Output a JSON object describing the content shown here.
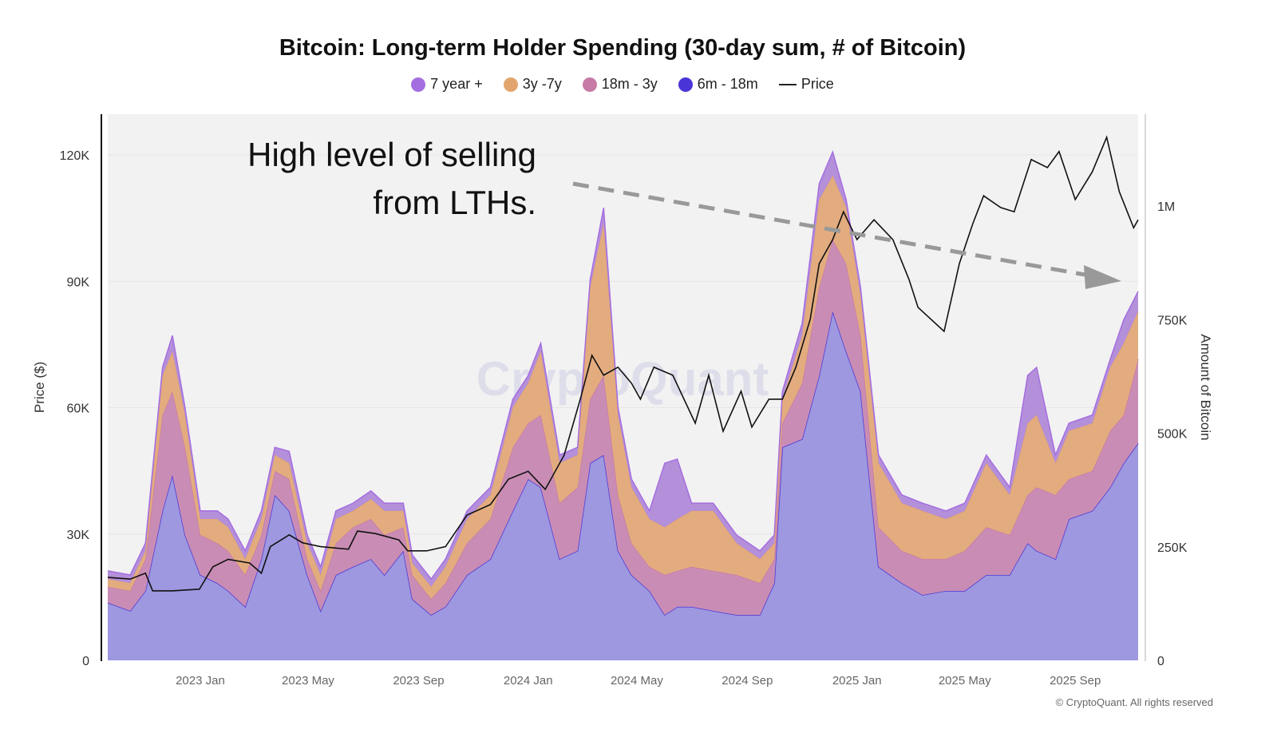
{
  "chart_data": {
    "type": "area",
    "stacked": true,
    "title": "Bitcoin: Long-term Holder Spending (30-day sum, # of Bitcoin)",
    "ylabel_left": "Price ($)",
    "ylabel_right": "Amount of Bitcoin",
    "left_ticks": [
      "0",
      "30K",
      "60K",
      "90K",
      "120K"
    ],
    "right_ticks": [
      "0",
      "250K",
      "500K",
      "750K",
      "1M"
    ],
    "x_ticks": [
      {
        "label": "2023 Jan",
        "date": "2023-01-01"
      },
      {
        "label": "2023 May",
        "date": "2023-05-01"
      },
      {
        "label": "2023 Sep",
        "date": "2023-09-01"
      },
      {
        "label": "2024 Jan",
        "date": "2024-01-01"
      },
      {
        "label": "2024 May",
        "date": "2024-05-01"
      },
      {
        "label": "2024 Sep",
        "date": "2024-09-01"
      },
      {
        "label": "2025 Jan",
        "date": "2025-01-01"
      },
      {
        "label": "2025 May",
        "date": "2025-05-01"
      },
      {
        "label": "2025 Sep",
        "date": "2025-09-01"
      }
    ],
    "xlim": [
      "2022-09-20",
      "2025-11-10"
    ],
    "ylim_left": [
      0,
      130000
    ],
    "ylim_right": [
      0,
      1200000
    ],
    "grid": true,
    "legend_position": "top-center",
    "annotation": {
      "line1": "High level of selling",
      "line2": "from LTHs.",
      "arrow": "dashed-down-right"
    },
    "watermark": "CryptoQuant",
    "copyright": "© CryptoQuant. All rights reserved",
    "dates": [
      "2022-09-20",
      "2022-10-15",
      "2022-11-01",
      "2022-11-20",
      "2022-12-01",
      "2022-12-15",
      "2023-01-01",
      "2023-01-20",
      "2023-02-01",
      "2023-02-20",
      "2023-03-10",
      "2023-03-25",
      "2023-04-10",
      "2023-04-30",
      "2023-05-15",
      "2023-06-01",
      "2023-06-20",
      "2023-07-10",
      "2023-07-25",
      "2023-08-15",
      "2023-08-25",
      "2023-09-15",
      "2023-10-01",
      "2023-10-25",
      "2023-11-20",
      "2023-12-15",
      "2024-01-01",
      "2024-01-15",
      "2024-02-05",
      "2024-02-25",
      "2024-03-10",
      "2024-03-25",
      "2024-04-10",
      "2024-04-25",
      "2024-05-15",
      "2024-06-01",
      "2024-06-15",
      "2024-07-01",
      "2024-07-25",
      "2024-08-20",
      "2024-09-15",
      "2024-10-01",
      "2024-10-10",
      "2024-11-01",
      "2024-11-20",
      "2024-12-05",
      "2024-12-20",
      "2025-01-05",
      "2025-01-25",
      "2025-02-20",
      "2025-03-15",
      "2025-04-10",
      "2025-05-01",
      "2025-05-25",
      "2025-06-20",
      "2025-07-10",
      "2025-07-20",
      "2025-08-10",
      "2025-08-25",
      "2025-09-20",
      "2025-10-10",
      "2025-10-25",
      "2025-11-10"
    ],
    "series": [
      {
        "name": "7 year +",
        "color": "#a56ee0",
        "fill": "#b48fda",
        "values": [
          18,
          18,
          17,
          18,
          35,
          17,
          18,
          18,
          18,
          18,
          18,
          17,
          26,
          18,
          18,
          18,
          17,
          18,
          17,
          17,
          18,
          17,
          17,
          18,
          17,
          18,
          17,
          18,
          18,
          17,
          17,
          35,
          17,
          18,
          18,
          141,
          132,
          17,
          17,
          18,
          18,
          18,
          17,
          27,
          35,
          52,
          17,
          18,
          18,
          18,
          17,
          18,
          17,
          18,
          17,
          105,
          105,
          18,
          17,
          18,
          18,
          52,
          44
        ]
      },
      {
        "name": "3y -7y",
        "color": "#e3a56e",
        "fill": "#e3ac7f",
        "values": [
          17,
          17,
          18,
          87,
          88,
          71,
          35,
          53,
          52,
          35,
          35,
          35,
          35,
          35,
          35,
          53,
          36,
          44,
          53,
          36,
          26,
          27,
          36,
          53,
          53,
          88,
          88,
          140,
          88,
          71,
          246,
          334,
          176,
          123,
          105,
          105,
          114,
          123,
          132,
          70,
          53,
          35,
          53,
          105,
          193,
          141,
          124,
          88,
          141,
          105,
          106,
          88,
          88,
          141,
          88,
          158,
          159,
          70,
          106,
          105,
          140,
          158,
          105
        ]
      },
      {
        "name": "18m - 3y",
        "color": "#c77aa5",
        "fill": "#c98db5",
        "values": [
          35,
          44,
          70,
          211,
          184,
          193,
          88,
          88,
          88,
          70,
          53,
          53,
          70,
          35,
          44,
          70,
          87,
          88,
          88,
          52,
          53,
          35,
          52,
          70,
          88,
          140,
          123,
          159,
          123,
          140,
          141,
          175,
          123,
          70,
          53,
          88,
          79,
          88,
          88,
          88,
          70,
          53,
          53,
          123,
          194,
          158,
          193,
          123,
          87,
          71,
          79,
          70,
          88,
          105,
          88,
          106,
          140,
          141,
          88,
          88,
          124,
          106,
          185
        ]
      },
      {
        "name": "6m - 18m",
        "color": "#4a35d8",
        "fill": "#9d98df",
        "values": [
          127,
          109,
          153,
          329,
          408,
          276,
          188,
          170,
          153,
          118,
          223,
          364,
          329,
          188,
          109,
          188,
          206,
          223,
          188,
          241,
          135,
          100,
          118,
          188,
          223,
          329,
          399,
          381,
          223,
          241,
          434,
          452,
          241,
          188,
          153,
          100,
          118,
          118,
          109,
          100,
          100,
          170,
          469,
          487,
          627,
          768,
          680,
          592,
          206,
          170,
          144,
          153,
          153,
          188,
          188,
          258,
          241,
          223,
          311,
          329,
          381,
          434,
          478
        ]
      }
    ],
    "series_units": "thousand BTC",
    "price": {
      "name": "Price",
      "color": "#111111",
      "units": "thousand USD",
      "dates": [
        "2022-09-20",
        "2022-10-15",
        "2022-11-01",
        "2022-11-09",
        "2022-12-01",
        "2022-12-31",
        "2023-01-15",
        "2023-02-01",
        "2023-02-25",
        "2023-03-10",
        "2023-03-20",
        "2023-04-10",
        "2023-04-25",
        "2023-05-15",
        "2023-06-15",
        "2023-06-25",
        "2023-07-15",
        "2023-08-10",
        "2023-08-20",
        "2023-09-10",
        "2023-10-01",
        "2023-10-25",
        "2023-11-20",
        "2023-12-10",
        "2024-01-01",
        "2024-01-20",
        "2024-02-10",
        "2024-02-28",
        "2024-03-12",
        "2024-03-25",
        "2024-04-10",
        "2024-04-25",
        "2024-05-05",
        "2024-05-20",
        "2024-06-10",
        "2024-07-05",
        "2024-07-20",
        "2024-08-05",
        "2024-08-25",
        "2024-09-06",
        "2024-09-25",
        "2024-10-10",
        "2024-10-25",
        "2024-11-10",
        "2024-11-20",
        "2024-12-05",
        "2024-12-17",
        "2025-01-01",
        "2025-01-20",
        "2025-02-10",
        "2025-02-28",
        "2025-03-10",
        "2025-04-08",
        "2025-04-25",
        "2025-05-10",
        "2025-05-22",
        "2025-06-10",
        "2025-06-25",
        "2025-07-14",
        "2025-08-01",
        "2025-08-14",
        "2025-09-01",
        "2025-09-20",
        "2025-10-06",
        "2025-10-20",
        "2025-11-05",
        "2025-11-10"
      ],
      "values": [
        19.7,
        19.3,
        20.7,
        16.5,
        16.5,
        16.9,
        22.2,
        24,
        23.1,
        20.7,
        27,
        29.8,
        27.9,
        27,
        26.4,
        30.7,
        30.1,
        28.6,
        26,
        26,
        27,
        34.5,
        37,
        43,
        44.9,
        40.6,
        48.7,
        62,
        72.4,
        67.7,
        69.6,
        65.8,
        62,
        69.6,
        67.7,
        56.3,
        67.7,
        54.4,
        63.9,
        55.4,
        62,
        62,
        69.6,
        81,
        94.2,
        99.9,
        106.5,
        99.9,
        104.6,
        99.9,
        90.4,
        83.8,
        78.1,
        94.2,
        103.7,
        110.3,
        107.5,
        106.5,
        118.9,
        117,
        120.8,
        109.4,
        116,
        124.2,
        111.3,
        102.7,
        104.6
      ]
    }
  }
}
